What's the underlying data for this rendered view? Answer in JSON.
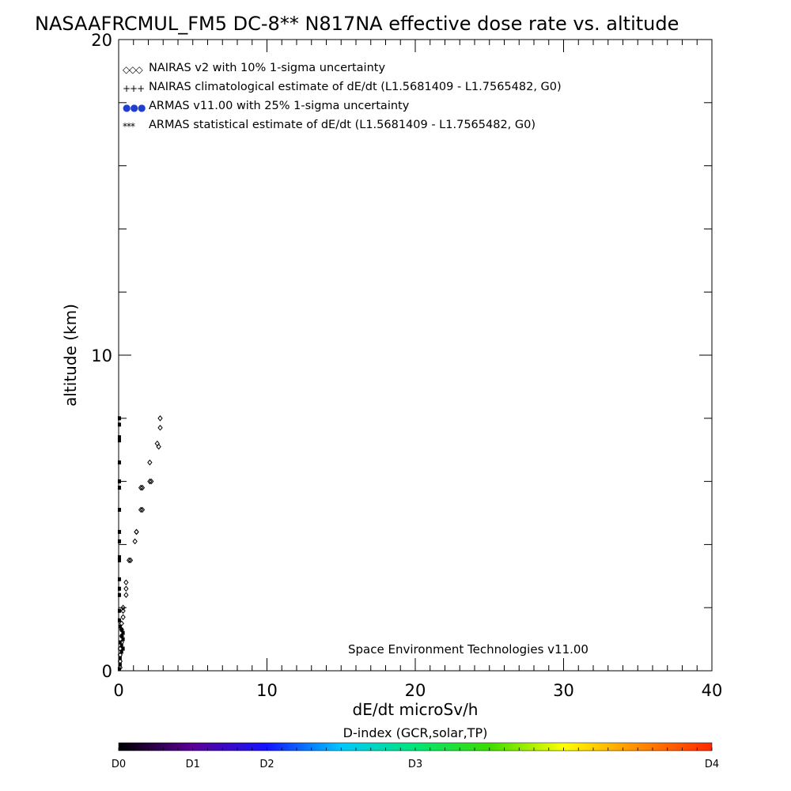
{
  "chart_data": {
    "type": "scatter",
    "title": "NASAAFRCMUL_FM5 DC-8** N817NA effective dose rate vs. altitude",
    "xlabel": "dE/dt microSv/h",
    "ylabel": "altitude (km)",
    "xlim": [
      0,
      40
    ],
    "ylim": [
      0,
      20
    ],
    "x_ticks": [
      0,
      10,
      20,
      30,
      40
    ],
    "y_ticks": [
      0,
      10,
      20
    ],
    "x_tick_labels": [
      "0",
      "10",
      "20",
      "30",
      "40"
    ],
    "y_tick_labels": [
      "0",
      "10",
      "20"
    ],
    "legend_position": "top-left",
    "legend": [
      {
        "symbol": "◇◇◇",
        "label": "NAIRAS v2 with 10% 1-sigma uncertainty",
        "color": "#000000"
      },
      {
        "symbol": "+++",
        "label": "NAIRAS climatological estimate of dE/dt (L1.5681409 - L1.7565482, G0)",
        "color": "#000000"
      },
      {
        "symbol": "●●●",
        "label": "ARMAS v11.00 with 25% 1-sigma uncertainty",
        "color": "#1f3fd0"
      },
      {
        "symbol": "***",
        "label": "ARMAS statistical estimate of dE/dt (L1.5681409 - L1.7565482, G0)",
        "color": "#000000"
      }
    ],
    "annotation": "Space Environment Technologies v11.00",
    "series": [
      {
        "marker": "diamond",
        "color": "#000000",
        "points": [
          [
            2.8,
            8.0
          ],
          [
            2.8,
            7.7
          ],
          [
            2.7,
            7.1
          ],
          [
            2.6,
            7.2
          ],
          [
            2.1,
            6.6
          ],
          [
            2.2,
            6.0
          ],
          [
            2.1,
            6.0
          ],
          [
            1.6,
            5.8
          ],
          [
            1.5,
            5.8
          ],
          [
            1.6,
            5.1
          ],
          [
            1.5,
            5.1
          ],
          [
            1.2,
            4.4
          ],
          [
            1.2,
            4.4
          ],
          [
            1.1,
            4.1
          ],
          [
            0.8,
            3.5
          ],
          [
            0.7,
            3.5
          ],
          [
            0.5,
            2.8
          ],
          [
            0.5,
            2.6
          ],
          [
            0.5,
            2.4
          ],
          [
            0.3,
            2.0
          ],
          [
            0.3,
            1.9
          ],
          [
            0.3,
            1.7
          ],
          [
            0.2,
            1.5
          ],
          [
            0.2,
            1.3
          ],
          [
            0.2,
            1.1
          ],
          [
            0.2,
            0.9
          ],
          [
            0.1,
            0.7
          ],
          [
            0.1,
            0.5
          ],
          [
            0.1,
            0.3
          ],
          [
            0.1,
            0.1
          ]
        ]
      },
      {
        "marker": "dot",
        "color": "#000000",
        "points": [
          [
            0.05,
            8.0
          ],
          [
            0.05,
            7.8
          ],
          [
            0.05,
            7.4
          ],
          [
            0.05,
            7.3
          ],
          [
            0.05,
            6.6
          ],
          [
            0.05,
            6.0
          ],
          [
            0.05,
            5.8
          ],
          [
            0.05,
            5.1
          ],
          [
            0.05,
            4.4
          ],
          [
            0.05,
            4.1
          ],
          [
            0.05,
            3.6
          ],
          [
            0.05,
            3.5
          ],
          [
            0.05,
            2.9
          ],
          [
            0.05,
            2.6
          ],
          [
            0.05,
            2.4
          ],
          [
            0.05,
            1.9
          ],
          [
            0.05,
            1.6
          ],
          [
            0.1,
            1.4
          ],
          [
            0.2,
            1.3
          ],
          [
            0.3,
            1.2
          ],
          [
            0.2,
            1.1
          ],
          [
            0.3,
            1.0
          ],
          [
            0.1,
            0.9
          ],
          [
            0.2,
            0.8
          ],
          [
            0.3,
            0.7
          ],
          [
            0.2,
            0.6
          ],
          [
            0.1,
            0.4
          ],
          [
            0.1,
            0.2
          ],
          [
            0.05,
            0.05
          ]
        ]
      }
    ]
  },
  "colorbar": {
    "title": "D-index (GCR,solar,TP)",
    "labels": [
      "D0",
      "D1",
      "D2",
      "D3",
      "D4"
    ],
    "label_positions": [
      0,
      0.125,
      0.25,
      0.5,
      1.0
    ],
    "colors": [
      "#000000",
      "#5a0096",
      "#1414ff",
      "#00c8ff",
      "#00e678",
      "#3cdc00",
      "#ffff00",
      "#ff8c00",
      "#ff2800"
    ]
  }
}
